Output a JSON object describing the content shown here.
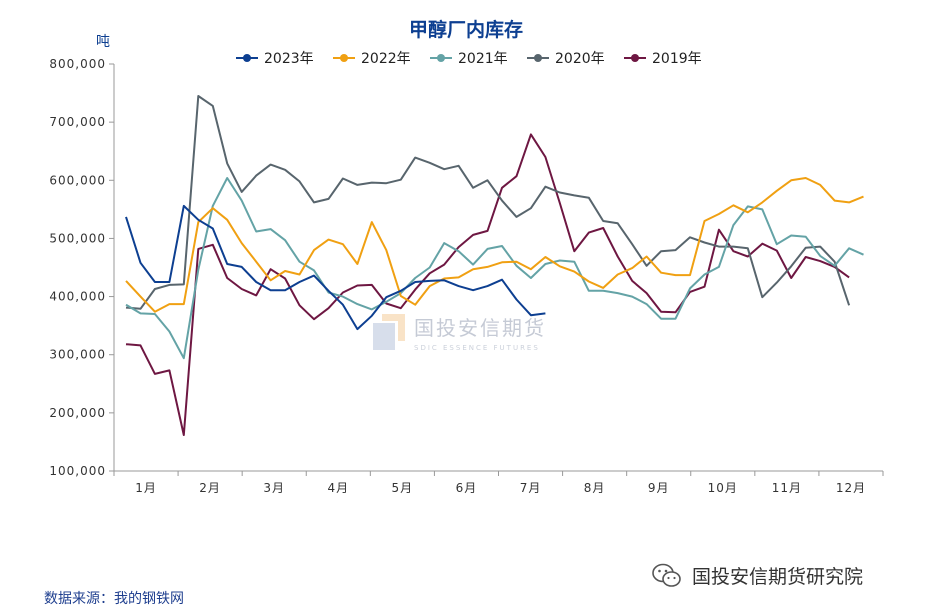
{
  "chart_data": {
    "type": "line",
    "title": "甲醇厂内库存",
    "ylabel": "吨",
    "ylim": [
      100000,
      800000
    ],
    "yticks": [
      100000,
      200000,
      300000,
      400000,
      500000,
      600000,
      700000,
      800000
    ],
    "ytick_labels": [
      "100,000",
      "200,000",
      "300,000",
      "400,000",
      "500,000",
      "600,000",
      "700,000",
      "800,000"
    ],
    "xlim": [
      1,
      53
    ],
    "categories": [
      "1月",
      "2月",
      "3月",
      "4月",
      "5月",
      "6月",
      "7月",
      "8月",
      "9月",
      "10月",
      "11月",
      "12月"
    ],
    "legend_position": "top-center",
    "grid": false,
    "x": [
      1,
      2,
      3,
      4,
      5,
      6,
      7,
      8,
      9,
      10,
      11,
      12,
      13,
      14,
      15,
      16,
      17,
      18,
      19,
      20,
      21,
      22,
      23,
      24,
      25,
      26,
      27,
      28,
      29,
      30,
      31,
      32,
      33,
      34,
      35,
      36,
      37,
      38,
      39,
      40,
      41,
      42,
      43,
      44,
      45,
      46,
      47,
      48,
      49,
      50,
      51,
      52,
      53
    ],
    "series": [
      {
        "name": "2023年",
        "color": "#0d3f91",
        "values": [
          537000,
          458000,
          425000,
          425000,
          556000,
          532000,
          517000,
          456000,
          451000,
          425000,
          411000,
          411000,
          425000,
          436000,
          410000,
          386000,
          344000,
          367000,
          399000,
          410000,
          425000,
          427000,
          428000,
          418000,
          411000,
          418000,
          429000,
          395000,
          368000,
          371000,
          null,
          null,
          null,
          null,
          null,
          null,
          null,
          null,
          null,
          null,
          null,
          null,
          null,
          null,
          null,
          null,
          null,
          null,
          null,
          null,
          null,
          null,
          null
        ]
      },
      {
        "name": "2022年",
        "color": "#f0a012",
        "values": [
          427000,
          400000,
          374000,
          387000,
          387000,
          528000,
          552000,
          532000,
          492000,
          460000,
          428000,
          444000,
          438000,
          480000,
          498000,
          490000,
          456000,
          528000,
          480000,
          401000,
          386000,
          418000,
          431000,
          433000,
          447000,
          451000,
          459000,
          460000,
          447000,
          468000,
          452000,
          443000,
          426000,
          415000,
          438000,
          449000,
          469000,
          441000,
          437000,
          437000,
          530000,
          542000,
          557000,
          545000,
          562000,
          582000,
          600000,
          604000,
          592000,
          565000,
          562000,
          572000,
          null
        ]
      },
      {
        "name": "2021年",
        "color": "#64a3a6",
        "values": [
          386000,
          371000,
          370000,
          340000,
          294000,
          446000,
          556000,
          604000,
          565000,
          512000,
          516000,
          497000,
          460000,
          445000,
          407000,
          400000,
          387000,
          378000,
          391000,
          406000,
          432000,
          450000,
          492000,
          478000,
          455000,
          482000,
          487000,
          453000,
          432000,
          456000,
          462000,
          460000,
          410000,
          410000,
          406000,
          400000,
          387000,
          362000,
          362000,
          414000,
          438000,
          451000,
          523000,
          555000,
          550000,
          490000,
          505000,
          503000,
          470000,
          453000,
          483000,
          472000,
          null
        ]
      },
      {
        "name": "2020年",
        "color": "#58656d",
        "values": [
          381000,
          379000,
          413000,
          420000,
          421000,
          745000,
          728000,
          629000,
          580000,
          608000,
          627000,
          618000,
          598000,
          562000,
          568000,
          603000,
          592000,
          596000,
          595000,
          601000,
          639000,
          630000,
          619000,
          625000,
          587000,
          600000,
          565000,
          537000,
          552000,
          589000,
          579000,
          574000,
          570000,
          530000,
          526000,
          490000,
          453000,
          478000,
          480000,
          502000,
          493000,
          486000,
          486000,
          483000,
          399000,
          424000,
          452000,
          484000,
          486000,
          460000,
          385000,
          null,
          null
        ]
      },
      {
        "name": "2019年",
        "color": "#6e1742",
        "values": [
          318000,
          316000,
          267000,
          273000,
          162000,
          482000,
          489000,
          432000,
          413000,
          402000,
          447000,
          431000,
          385000,
          361000,
          380000,
          407000,
          419000,
          420000,
          388000,
          380000,
          412000,
          440000,
          455000,
          485000,
          506000,
          513000,
          587000,
          607000,
          679000,
          640000,
          561000,
          478000,
          510000,
          518000,
          469000,
          427000,
          406000,
          374000,
          373000,
          408000,
          417000,
          515000,
          478000,
          469000,
          491000,
          479000,
          432000,
          468000,
          461000,
          451000,
          433000,
          null,
          null
        ]
      }
    ]
  },
  "source_text": "数据来源：我的钢铁网",
  "brand_text": "国投安信期货研究院",
  "watermark": {
    "main": "国投安信期货",
    "sub": "SDIC ESSENCE FUTURES"
  }
}
